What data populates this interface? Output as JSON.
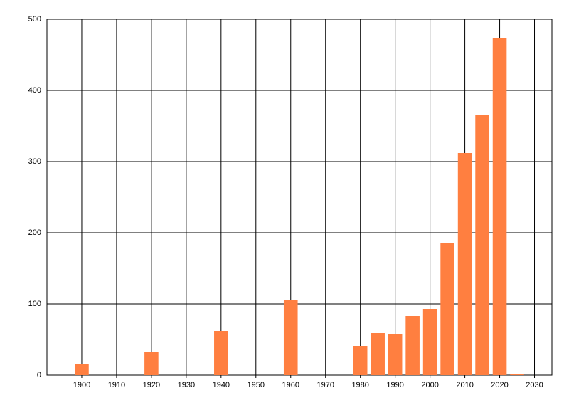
{
  "chart_data": {
    "type": "bar",
    "x": [
      1900,
      1920,
      1940,
      1960,
      1980,
      1985,
      1990,
      1995,
      2000,
      2005,
      2010,
      2015,
      2020,
      2025
    ],
    "values": [
      15,
      32,
      62,
      106,
      41,
      59,
      58,
      83,
      93,
      186,
      312,
      365,
      474,
      2
    ],
    "color": "#ff7f40",
    "xlim": [
      1890,
      2035
    ],
    "xticks": [
      1900,
      1910,
      1920,
      1930,
      1940,
      1950,
      1960,
      1970,
      1980,
      1990,
      2000,
      2010,
      2020,
      2030
    ],
    "ylim": [
      0,
      500
    ],
    "yticks": [
      0,
      100,
      200,
      300,
      400,
      500
    ],
    "grid": true
  }
}
